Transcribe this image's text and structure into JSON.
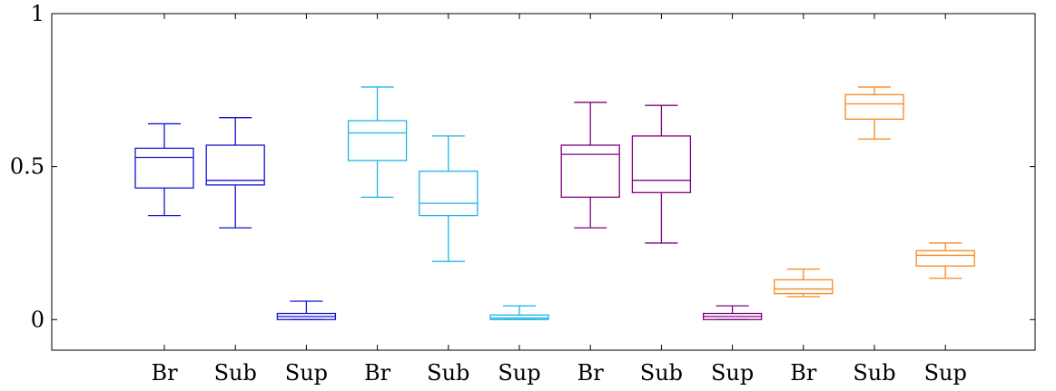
{
  "chart_data": {
    "type": "boxplot",
    "title": "",
    "xlabel": "",
    "ylabel": "",
    "ylim": [
      -0.1,
      1.0
    ],
    "yticks": [
      0,
      0.5,
      1
    ],
    "ytick_labels": [
      "0",
      "0.5",
      "1"
    ],
    "grid": false,
    "series": [
      {
        "color": "#1414d0",
        "boxes": [
          {
            "label": "Br",
            "whisker_low": 0.34,
            "q1": 0.43,
            "median": 0.53,
            "q3": 0.56,
            "whisker_high": 0.64
          },
          {
            "label": "Sub",
            "whisker_low": 0.3,
            "q1": 0.44,
            "median": 0.455,
            "q3": 0.57,
            "whisker_high": 0.66
          },
          {
            "label": "Sup",
            "whisker_low": 0.0,
            "q1": 0.0,
            "median": 0.01,
            "q3": 0.02,
            "whisker_high": 0.06
          }
        ]
      },
      {
        "color": "#1eb4e6",
        "boxes": [
          {
            "label": "Br",
            "whisker_low": 0.4,
            "q1": 0.52,
            "median": 0.61,
            "q3": 0.65,
            "whisker_high": 0.76
          },
          {
            "label": "Sub",
            "whisker_low": 0.19,
            "q1": 0.34,
            "median": 0.38,
            "q3": 0.485,
            "whisker_high": 0.6
          },
          {
            "label": "Sup",
            "whisker_low": 0.0,
            "q1": 0.0,
            "median": 0.005,
            "q3": 0.015,
            "whisker_high": 0.045
          }
        ]
      },
      {
        "color": "#800080",
        "boxes": [
          {
            "label": "Br",
            "whisker_low": 0.3,
            "q1": 0.4,
            "median": 0.54,
            "q3": 0.57,
            "whisker_high": 0.71
          },
          {
            "label": "Sub",
            "whisker_low": 0.25,
            "q1": 0.415,
            "median": 0.455,
            "q3": 0.6,
            "whisker_high": 0.7
          },
          {
            "label": "Sup",
            "whisker_low": 0.0,
            "q1": 0.0,
            "median": 0.01,
            "q3": 0.02,
            "whisker_high": 0.045
          }
        ]
      },
      {
        "color": "#f5891e",
        "boxes": [
          {
            "label": "Br",
            "whisker_low": 0.075,
            "q1": 0.085,
            "median": 0.1,
            "q3": 0.13,
            "whisker_high": 0.165
          },
          {
            "label": "Sub",
            "whisker_low": 0.59,
            "q1": 0.655,
            "median": 0.705,
            "q3": 0.735,
            "whisker_high": 0.76
          },
          {
            "label": "Sup",
            "whisker_low": 0.135,
            "q1": 0.175,
            "median": 0.21,
            "q3": 0.225,
            "whisker_high": 0.25
          }
        ]
      }
    ]
  }
}
